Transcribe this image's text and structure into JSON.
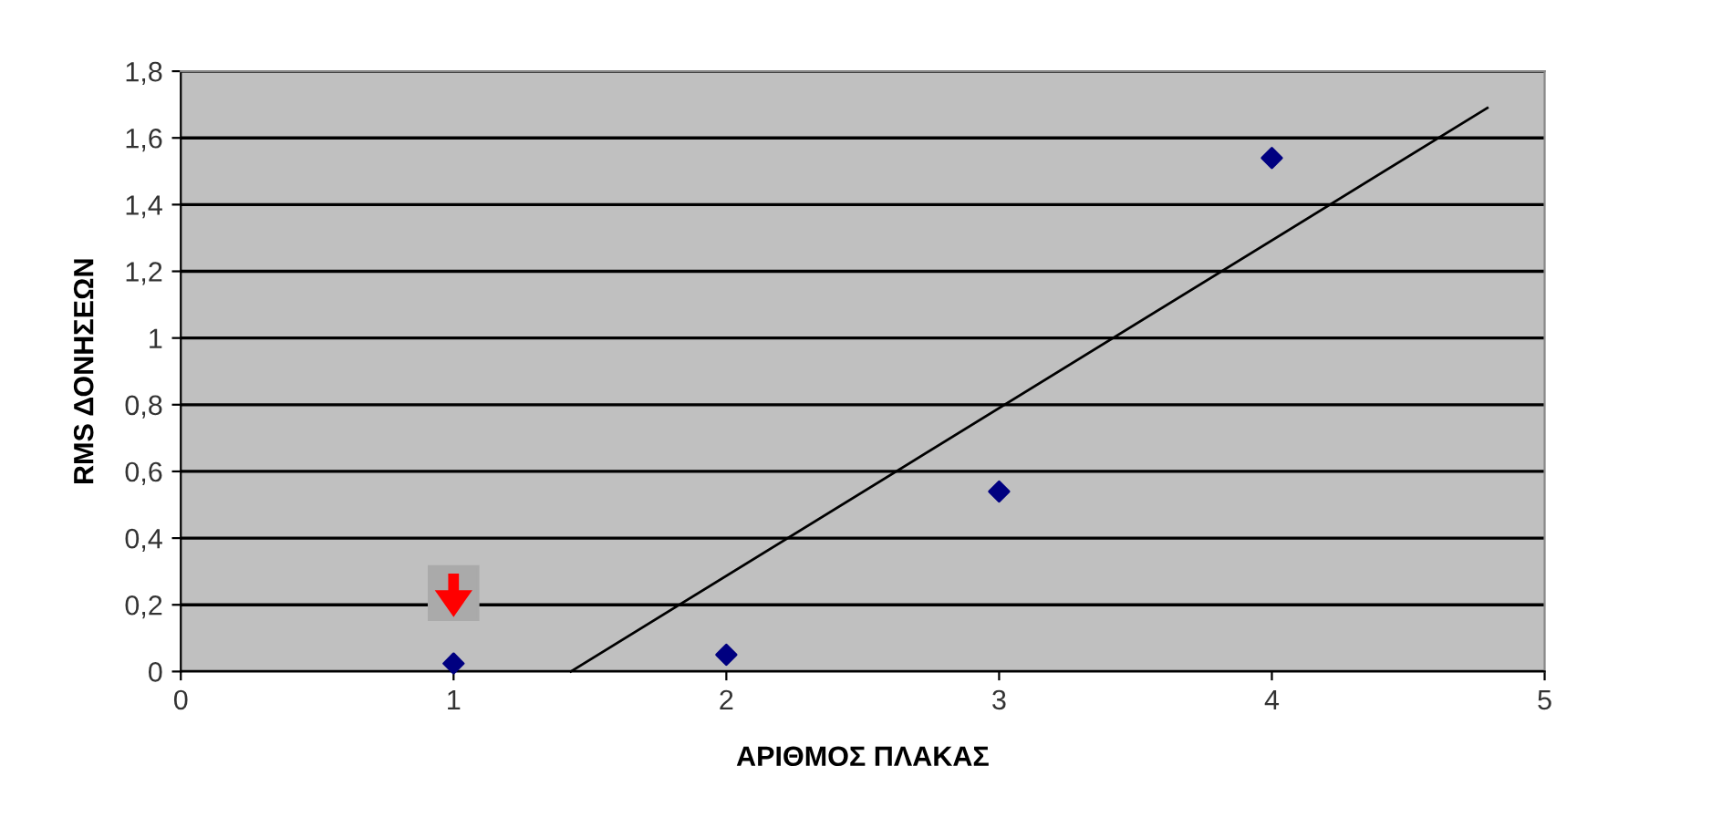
{
  "chart_data": {
    "type": "scatter",
    "xlabel": "ΑΡΙΘΜΟΣ ΠΛΑΚΑΣ",
    "ylabel": "RMS ΔΟΝΗΣΕΩΝ",
    "xlim": [
      0,
      5
    ],
    "xticks": [
      0,
      1,
      2,
      3,
      4,
      5
    ],
    "ylim": [
      0,
      1.8
    ],
    "yticks": [
      {
        "value": 0,
        "label": "0"
      },
      {
        "value": 0.2,
        "label": "0,2"
      },
      {
        "value": 0.4,
        "label": "0,4"
      },
      {
        "value": 0.6,
        "label": "0,6"
      },
      {
        "value": 0.8,
        "label": "0,8"
      },
      {
        "value": 1,
        "label": "1"
      },
      {
        "value": 1.2,
        "label": "1,2"
      },
      {
        "value": 1.4,
        "label": "1,4"
      },
      {
        "value": 1.6,
        "label": "1,6"
      },
      {
        "value": 1.8,
        "label": "1,8"
      }
    ],
    "grid": "y",
    "legend": false,
    "series": [
      {
        "color": "#000080",
        "marker": "diamond",
        "x": [
          1,
          2,
          3,
          4
        ],
        "values": [
          0.024,
          0.05,
          0.54,
          1.54
        ]
      },
      {
        "type": "line",
        "color": "#000000",
        "marker": "none",
        "line_style": "solid",
        "x": [
          1.43,
          4.79
        ],
        "values": [
          0,
          1.69
        ]
      }
    ]
  }
}
